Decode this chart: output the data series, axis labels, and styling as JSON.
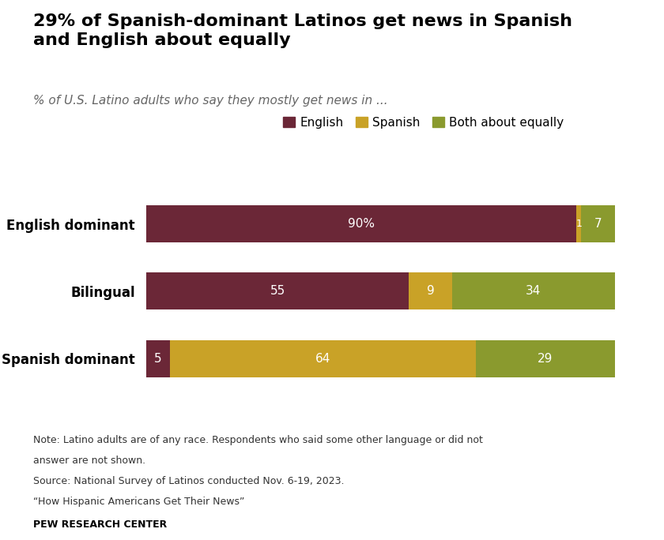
{
  "title": "29% of Spanish-dominant Latinos get news in Spanish\nand English about equally",
  "subtitle": "% of U.S. Latino adults who say they mostly get news in ...",
  "categories": [
    "English dominant",
    "Bilingual",
    "Spanish dominant"
  ],
  "series": {
    "English": [
      90,
      55,
      5
    ],
    "Spanish": [
      1,
      9,
      64
    ],
    "Both about equally": [
      7,
      34,
      29
    ]
  },
  "labels": {
    "English": [
      "90%",
      "55",
      "5"
    ],
    "Spanish": [
      "1",
      "9",
      "64"
    ],
    "Both about equally": [
      "7",
      "34",
      "29"
    ]
  },
  "colors": {
    "English": "#6b2737",
    "Spanish": "#c9a227",
    "Both about equally": "#8a9a2e"
  },
  "note1": "Note: Latino adults are of any race. Respondents who said some other language or did not",
  "note2": "answer are not shown.",
  "note3": "Source: National Survey of Latinos conducted Nov. 6-19, 2023.",
  "note4": "“How Hispanic Americans Get Their News”",
  "source_bold": "PEW RESEARCH CENTER",
  "background_color": "#ffffff",
  "bar_height": 0.55,
  "legend_labels": [
    "English",
    "Spanish",
    "Both about equally"
  ],
  "seg_order": [
    "English",
    "Spanish",
    "Both about equally"
  ]
}
